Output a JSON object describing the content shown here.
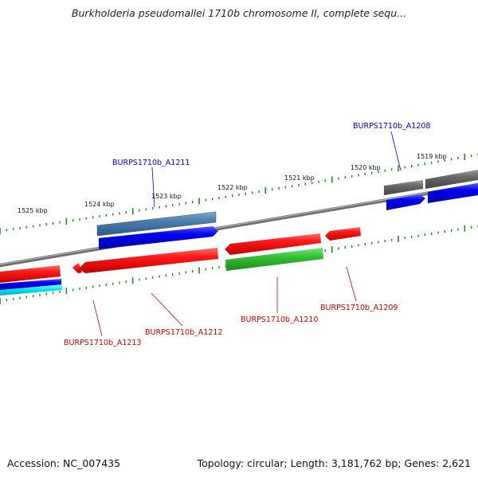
{
  "title": "Burkholderia pseudomallei 1710b chromosome II, complete sequ...",
  "footer": {
    "accession": "Accession: NC_007435",
    "topology": "Topology: circular; Length: 3,181,762 bp; Genes: 2,621"
  },
  "scale_labels": [
    "1525 kbp",
    "1524 kbp",
    "1523 kbp",
    "1522 kbp",
    "1521 kbp",
    "1520 kbp",
    "1519 kbp"
  ],
  "gene_labels": [
    {
      "name": "BURPS1710b_A1211",
      "strand": "forward",
      "color": "#0000cc"
    },
    {
      "name": "BURPS1710b_A1208",
      "strand": "forward",
      "color": "#0000cc"
    },
    {
      "name": "BURPS1710b_A1213",
      "strand": "reverse",
      "color": "#cc0000"
    },
    {
      "name": "BURPS1710b_A1212",
      "strand": "reverse",
      "color": "#cc0000"
    },
    {
      "name": "BURPS1710b_A1210",
      "strand": "reverse",
      "color": "#cc0000"
    },
    {
      "name": "BURPS1710b_A1209",
      "strand": "reverse",
      "color": "#cc0000"
    }
  ],
  "colors": {
    "backbone": "#777777",
    "tick": "#1f8a1f",
    "forward_label": "#0000cc",
    "reverse_label": "#cc0000",
    "gene_red": "#ee1111",
    "gene_blue": "#0000ee",
    "gene_steelblue": "#4477aa",
    "gene_green": "#33bb33",
    "gene_gray": "#666666",
    "gene_cyan": "#00ddee"
  }
}
